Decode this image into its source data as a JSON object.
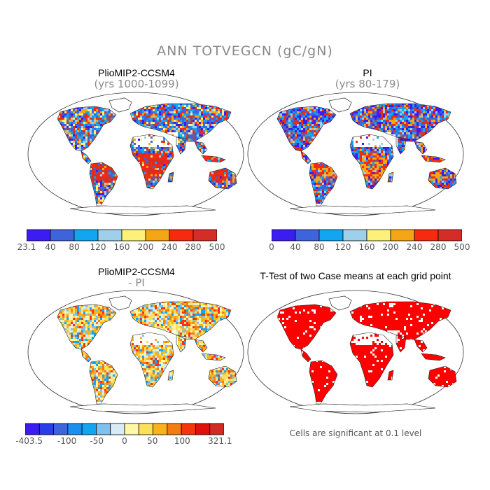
{
  "figure": {
    "title": "ANN TOTVEGCN (gC/gN)"
  },
  "panels": [
    {
      "id": "plio",
      "title": "PlioMIP2-CCSM4",
      "subtitle": "(yrs 1000-1099)",
      "colorbar": {
        "colors": [
          "#3b1cf2",
          "#3e64dc",
          "#12a6f0",
          "#9ecfeb",
          "#fff07a",
          "#f5a614",
          "#f52a0e",
          "#d42d25"
        ],
        "labels": [
          "23.1",
          "40",
          "80",
          "120",
          "160",
          "200",
          "240",
          "280",
          "500"
        ]
      }
    },
    {
      "id": "pi",
      "title": "PI",
      "subtitle": "(yrs 80-179)",
      "colorbar": {
        "colors": [
          "#3b1cf2",
          "#3e64dc",
          "#12a6f0",
          "#9ecfeb",
          "#fff07a",
          "#f5a614",
          "#f52a0e",
          "#d42d25"
        ],
        "labels": [
          "0",
          "40",
          "80",
          "120",
          "160",
          "200",
          "240",
          "280",
          "500"
        ]
      }
    },
    {
      "id": "diff",
      "title": "PlioMIP2-CCSM4",
      "subtitle": "- PI",
      "colorbar": {
        "colors": [
          "#3b1cf2",
          "#2a3ee8",
          "#3e64dc",
          "#1a8ff0",
          "#12a6f0",
          "#7cc2ee",
          "#d7ecf7",
          "#fff7a8",
          "#fde05a",
          "#f8b21a",
          "#f57b12",
          "#f5350e",
          "#e0100a",
          "#cf2b22"
        ],
        "labels": [
          "-403.5",
          "-100",
          "-50",
          "0",
          "50",
          "100",
          "321.1"
        ]
      }
    },
    {
      "id": "ttest",
      "title": "T-Test of two Case means at each grid point",
      "note": "Cells are significant at 0.1 level",
      "color": "#ff0000"
    }
  ]
}
